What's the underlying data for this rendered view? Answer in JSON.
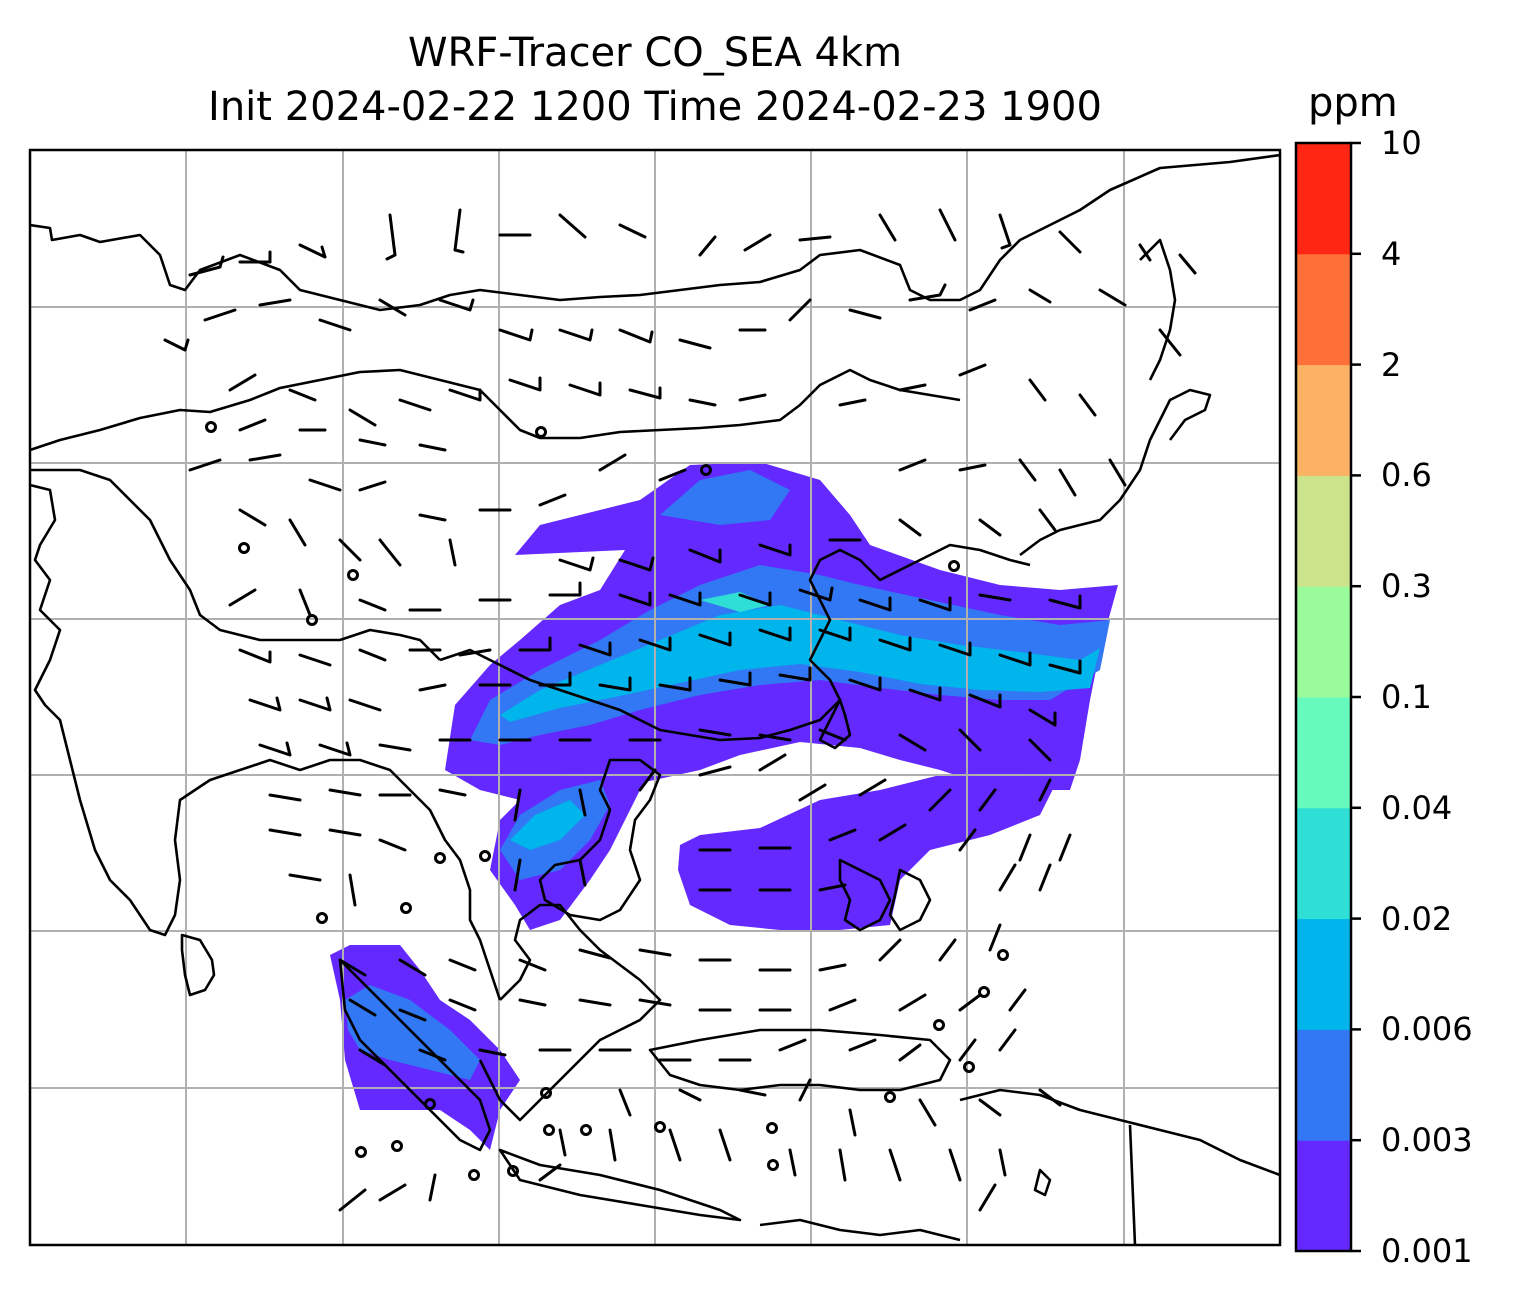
{
  "title": {
    "line1": "WRF-Tracer CO_SEA 4km",
    "line2": "Init 2024-02-22 1200 Time 2024-02-23 1900"
  },
  "map": {
    "grid": "on",
    "grid_color": "#b0b0b0",
    "coastline_color": "#000000",
    "field": "CO tracer concentration (filled contours)",
    "overlay": "wind barbs"
  },
  "colorbar": {
    "unit": "ppm",
    "ticks": [
      "0.001",
      "0.003",
      "0.006",
      "0.02",
      "0.04",
      "0.1",
      "0.3",
      "0.6",
      "2",
      "4",
      "10"
    ],
    "colors": [
      "#6429ff",
      "#3277f4",
      "#00b4ec",
      "#2fdfd6",
      "#66fbbc",
      "#99fb99",
      "#cbe38a",
      "#fcb265",
      "#ff7039",
      "#ff2713"
    ]
  }
}
